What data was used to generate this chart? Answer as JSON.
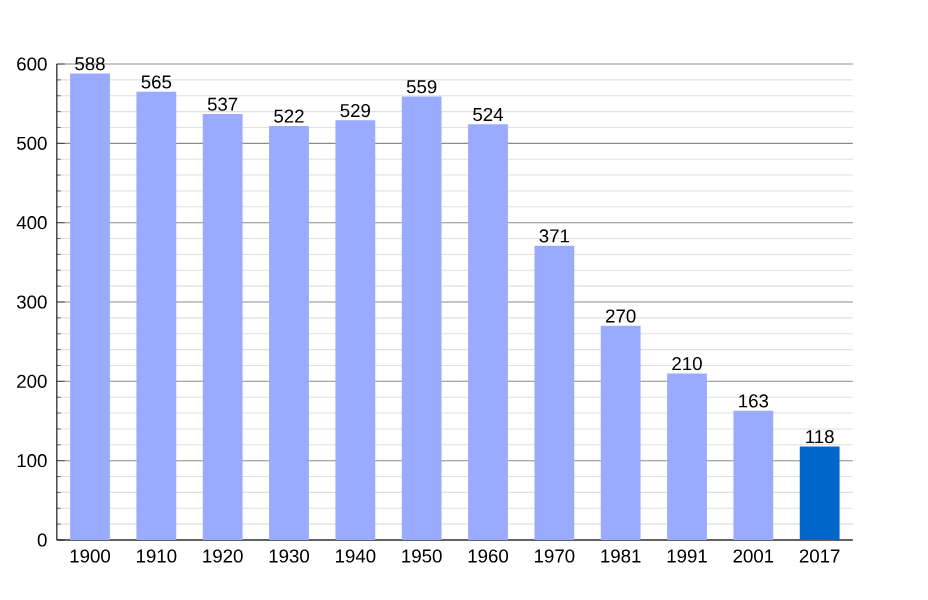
{
  "chart_data": {
    "type": "bar",
    "categories": [
      "1900",
      "1910",
      "1920",
      "1930",
      "1940",
      "1950",
      "1960",
      "1970",
      "1981",
      "1991",
      "2001",
      "2017"
    ],
    "values": [
      588,
      565,
      537,
      522,
      529,
      559,
      524,
      371,
      270,
      210,
      163,
      118
    ],
    "colors": [
      "#99aaff",
      "#99aaff",
      "#99aaff",
      "#99aaff",
      "#99aaff",
      "#99aaff",
      "#99aaff",
      "#99aaff",
      "#99aaff",
      "#99aaff",
      "#99aaff",
      "#0066cc"
    ],
    "ylim": [
      0,
      600
    ],
    "yticks": [
      0,
      100,
      200,
      300,
      400,
      500,
      600
    ],
    "grid": "y",
    "data_labels": true
  }
}
